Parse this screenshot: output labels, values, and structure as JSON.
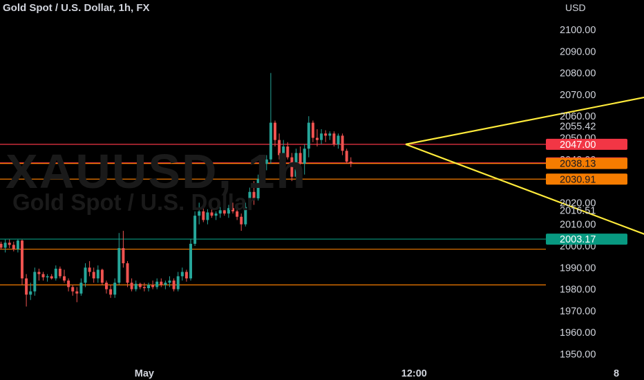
{
  "header": {
    "title": "Gold Spot / U.S. Dollar, 1h, FX",
    "currency": "USD"
  },
  "watermark": {
    "symbol": "XAUUSD, 1h",
    "description": "Gold Spot / U.S. Dollar"
  },
  "colors": {
    "up": "#26a69a",
    "down": "#ef5350",
    "red_line": "#f23645",
    "orange_line": "#f57c00",
    "teal_line": "#089981",
    "arrow": "#ffeb3b",
    "axis_text": "#d1d4dc"
  },
  "chart_data": {
    "type": "candlestick",
    "title": "Gold Spot / U.S. Dollar, 1h, FX",
    "ylabel": "USD",
    "ylim": [
      1945,
      2105
    ],
    "y_ticks": [
      1950,
      1960,
      1970,
      1980,
      1990,
      2000,
      2010,
      2020,
      2030,
      2040,
      2050,
      2060,
      2070,
      2080,
      2090,
      2100
    ],
    "y_tick_labels": [
      "1950.00",
      "1960.00",
      "1970.00",
      "1980.00",
      "1990.00",
      "2000.00",
      "2010.00",
      "2020.00",
      "2030.00",
      "2040.00",
      "2050.00",
      "2060.00",
      "2070.00",
      "2080.00",
      "2090.00",
      "2100.00"
    ],
    "x_ticks": [
      {
        "label": "May",
        "bar": 34
      },
      {
        "label": "12:00",
        "bar": 98
      },
      {
        "label": "8",
        "bar": 146
      }
    ],
    "series": [
      {
        "name": "XAUUSD",
        "candles": [
          [
            2001,
            2002,
            1998.5,
            1999.2
          ],
          [
            1999.2,
            2003,
            1997,
            2001.5
          ],
          [
            2001.5,
            2003,
            1999,
            2000.5
          ],
          [
            2000.5,
            2002,
            1997.5,
            1998.5
          ],
          [
            1998.5,
            2003,
            1997,
            2002.5
          ],
          [
            2002.5,
            2003,
            1982,
            1985
          ],
          [
            1985,
            1987,
            1972,
            1977.5
          ],
          [
            1977.5,
            1983,
            1975,
            1979
          ],
          [
            1979,
            1990,
            1977,
            1988
          ],
          [
            1988,
            1989.5,
            1984,
            1987
          ],
          [
            1987,
            1988,
            1984,
            1985.5
          ],
          [
            1985.5,
            1987,
            1983.5,
            1986
          ],
          [
            1986,
            1987,
            1984.5,
            1985
          ],
          [
            1985,
            1991,
            1984,
            1989.5
          ],
          [
            1989.5,
            1990.5,
            1985,
            1986
          ],
          [
            1986,
            1989,
            1983,
            1984
          ],
          [
            1984,
            1985,
            1979,
            1981
          ],
          [
            1981,
            1982,
            1977,
            1979
          ],
          [
            1979,
            1981,
            1974,
            1978
          ],
          [
            1978,
            1985,
            1977,
            1983
          ],
          [
            1983,
            1992,
            1981,
            1990
          ],
          [
            1990,
            1993,
            1986,
            1988
          ],
          [
            1988,
            1990,
            1983,
            1985
          ],
          [
            1985,
            1991,
            1983,
            1989
          ],
          [
            1989,
            1989.5,
            1982,
            1983
          ],
          [
            1983,
            1984,
            1978,
            1980
          ],
          [
            1980,
            1982,
            1976,
            1977.5
          ],
          [
            1977.5,
            1985,
            1976,
            1983
          ],
          [
            1983,
            2006,
            1982,
            1999
          ],
          [
            1999,
            2007,
            1990,
            1992
          ],
          [
            1992,
            1993,
            1981,
            1983
          ],
          [
            1983,
            1985,
            1979,
            1980
          ],
          [
            1980,
            1984,
            1979,
            1982.5
          ],
          [
            1982.5,
            1983,
            1980,
            1981
          ],
          [
            1981,
            1983,
            1979,
            1980.5
          ],
          [
            1980.5,
            1983,
            1979,
            1982
          ],
          [
            1982,
            1984,
            1980,
            1981
          ],
          [
            1981,
            1985,
            1980,
            1983.5
          ],
          [
            1983.5,
            1985,
            1981,
            1982
          ],
          [
            1982,
            1984,
            1980,
            1983
          ],
          [
            1983,
            1986,
            1981,
            1984
          ],
          [
            1984,
            1985,
            1979,
            1980
          ],
          [
            1980,
            1988,
            1979,
            1986
          ],
          [
            1986,
            1990,
            1984,
            1988
          ],
          [
            1988,
            1989,
            1983.5,
            1985
          ],
          [
            1985,
            2003,
            1984,
            2001
          ],
          [
            2001,
            2016,
            2000,
            2014
          ],
          [
            2014,
            2020,
            2010,
            2016
          ],
          [
            2016,
            2018,
            2011,
            2012
          ],
          [
            2012,
            2017,
            2010,
            2015.5
          ],
          [
            2015.5,
            2017,
            2013,
            2014
          ],
          [
            2014,
            2016,
            2012,
            2015
          ],
          [
            2015,
            2018,
            2013,
            2016.5
          ],
          [
            2016.5,
            2019,
            2014,
            2015
          ],
          [
            2015,
            2019,
            2013,
            2017.5
          ],
          [
            2017.5,
            2020,
            2015,
            2016
          ],
          [
            2016,
            2017,
            2012,
            2013.5
          ],
          [
            2013.5,
            2015,
            2007,
            2010
          ],
          [
            2010,
            2020,
            2009,
            2018
          ],
          [
            2018,
            2027,
            2017,
            2025
          ],
          [
            2025,
            2030,
            2019,
            2022
          ],
          [
            2022,
            2033,
            2021,
            2031
          ],
          [
            2031,
            2040,
            2029,
            2038
          ],
          [
            2038,
            2042,
            2035,
            2040
          ],
          [
            2040,
            2080,
            2038,
            2057
          ],
          [
            2057,
            2058,
            2046,
            2049
          ],
          [
            2049,
            2052,
            2040,
            2042
          ],
          [
            2042,
            2049,
            2040,
            2046
          ],
          [
            2046,
            2048,
            2040,
            2041
          ],
          [
            2041,
            2043,
            2030,
            2032
          ],
          [
            2032,
            2045,
            2031,
            2043
          ],
          [
            2043,
            2046,
            2036,
            2038
          ],
          [
            2038,
            2047,
            2033,
            2045
          ],
          [
            2045,
            2060,
            2041,
            2057
          ],
          [
            2057,
            2058,
            2048,
            2050
          ],
          [
            2050,
            2054,
            2046,
            2049
          ],
          [
            2049,
            2054,
            2047,
            2052
          ],
          [
            2052,
            2053.5,
            2048,
            2051
          ],
          [
            2051,
            2053,
            2049,
            2052
          ],
          [
            2052,
            2053,
            2046,
            2047
          ],
          [
            2047,
            2052,
            2045,
            2051
          ],
          [
            2051,
            2052,
            2042,
            2044
          ],
          [
            2044,
            2045,
            2038,
            2039
          ],
          [
            2039,
            2041,
            2036.5,
            2038.13
          ]
        ]
      }
    ],
    "horizontal_levels": [
      {
        "value": 2047.0,
        "label": "2047.00",
        "kind": "red"
      },
      {
        "value": 2038.43,
        "label": "2038.43",
        "kind": "red"
      },
      {
        "value": 2038.13,
        "label": "2038.13",
        "kind": "orange"
      },
      {
        "value": 2030.91,
        "label": "2030.91",
        "kind": "orange"
      },
      {
        "value": 2003.17,
        "label": "2003.17",
        "kind": "teal"
      },
      {
        "value": 1998.5,
        "label": "",
        "kind": "orange"
      },
      {
        "value": 1982.0,
        "label": "",
        "kind": "orange"
      }
    ],
    "plain_price_labels": [
      {
        "value": 2055.42,
        "label": "2055.42"
      },
      {
        "value": 2016.51,
        "label": "2016.51"
      }
    ],
    "arrows": [
      {
        "start": [
          96,
          2047
        ],
        "end": [
          156,
          2070
        ]
      },
      {
        "start": [
          96,
          2047
        ],
        "end": [
          156,
          2003
        ]
      }
    ],
    "grid": false
  }
}
